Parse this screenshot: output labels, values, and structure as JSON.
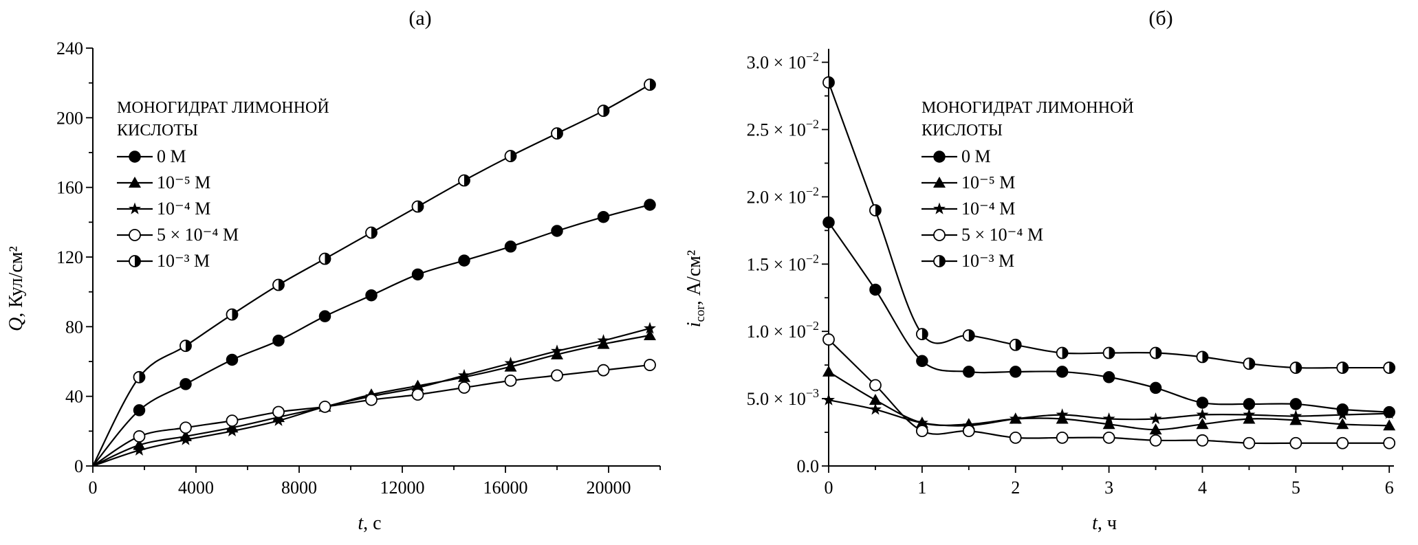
{
  "chart_data": [
    {
      "type": "line",
      "panel_label": "(a)",
      "xlabel_var": "t",
      "xlabel_rest": ", с",
      "ylabel_var": "Q",
      "ylabel_rest": ", Кул/см²",
      "xlim": [
        0,
        22000
      ],
      "ylim": [
        0,
        240
      ],
      "x_ticks": [
        0,
        4000,
        8000,
        12000,
        16000,
        20000
      ],
      "x_minor_step": 2000,
      "y_ticks": [
        {
          "value": 0,
          "label": "0"
        },
        {
          "value": 40,
          "label": "40"
        },
        {
          "value": 80,
          "label": "80"
        },
        {
          "value": 120,
          "label": "120"
        },
        {
          "value": 160,
          "label": "160"
        },
        {
          "value": 200,
          "label": "200"
        },
        {
          "value": 240,
          "label": "240"
        }
      ],
      "y_minor_step": 20,
      "line_starts_at_origin": true,
      "legend_title": [
        "МОНОГИДРАТ ЛИМОННОЙ",
        "КИСЛОТЫ"
      ],
      "legend_position": "upper-left",
      "x": [
        1800,
        3600,
        5400,
        7200,
        9000,
        10800,
        12600,
        14400,
        16200,
        18000,
        19800,
        21600
      ],
      "series": [
        {
          "name": "0 M",
          "marker": "filled-circle",
          "values": [
            32,
            47,
            61,
            72,
            86,
            98,
            110,
            118,
            126,
            135,
            143,
            150
          ]
        },
        {
          "name": "10⁻⁵ M",
          "marker": "filled-triangle",
          "values": [
            12,
            17,
            22,
            28,
            34,
            41,
            46,
            51,
            57,
            64,
            70,
            75
          ]
        },
        {
          "name": "10⁻⁴ M",
          "marker": "filled-star",
          "values": [
            9,
            15,
            20,
            26,
            34,
            40,
            45,
            52,
            59,
            66,
            72,
            79
          ]
        },
        {
          "name": "5 × 10⁻⁴ M",
          "marker": "open-circle",
          "values": [
            17,
            22,
            26,
            31,
            34,
            38,
            41,
            45,
            49,
            52,
            55,
            58
          ]
        },
        {
          "name": "10⁻³ M",
          "marker": "half-filled-circle",
          "values": [
            51,
            69,
            87,
            104,
            119,
            134,
            149,
            164,
            178,
            191,
            204,
            219
          ]
        }
      ]
    },
    {
      "type": "line",
      "panel_label": "(б)",
      "xlabel_var": "t",
      "xlabel_rest": ", ч",
      "ylabel_var": "i",
      "ylabel_sub": "cor",
      "ylabel_rest": ", А/см²",
      "xlim": [
        0,
        6.05
      ],
      "ylim": [
        0,
        0.031
      ],
      "x_ticks": [
        0,
        1,
        2,
        3,
        4,
        5,
        6
      ],
      "x_minor_step": 0.5,
      "y_ticks": [
        {
          "value": 0,
          "label": "0.0"
        },
        {
          "value": 0.005,
          "label": "5.0 × 10",
          "exp": "−3"
        },
        {
          "value": 0.01,
          "label": "1.0 × 10",
          "exp": "−2"
        },
        {
          "value": 0.015,
          "label": "1.5 × 10",
          "exp": "−2"
        },
        {
          "value": 0.02,
          "label": "2.0 × 10",
          "exp": "−2"
        },
        {
          "value": 0.025,
          "label": "2.5 × 10",
          "exp": "−2"
        },
        {
          "value": 0.03,
          "label": "3.0 × 10",
          "exp": "−2"
        }
      ],
      "y_minor_step": 0.0025,
      "line_starts_at_origin": false,
      "legend_title": [
        "МОНОГИДРАТ ЛИМОННОЙ",
        "КИСЛОТЫ"
      ],
      "legend_position": "upper-center",
      "x": [
        0,
        0.5,
        1,
        1.5,
        2,
        2.5,
        3,
        3.5,
        4,
        4.5,
        5,
        5.5,
        6
      ],
      "series": [
        {
          "name": "0 M",
          "marker": "filled-circle",
          "values": [
            0.0181,
            0.0131,
            0.0078,
            0.007,
            0.007,
            0.007,
            0.0066,
            0.0058,
            0.0047,
            0.0046,
            0.0046,
            0.0042,
            0.004
          ]
        },
        {
          "name": "10⁻⁵ M",
          "marker": "filled-triangle",
          "values": [
            0.007,
            0.0049,
            0.0032,
            0.0031,
            0.0035,
            0.0035,
            0.0031,
            0.0027,
            0.0031,
            0.0035,
            0.0034,
            0.0031,
            0.003
          ]
        },
        {
          "name": "10⁻⁴ M",
          "marker": "filled-star",
          "values": [
            0.0049,
            0.0042,
            0.0032,
            0.003,
            0.0035,
            0.0038,
            0.0035,
            0.0035,
            0.0038,
            0.0038,
            0.0037,
            0.0038,
            0.0039
          ]
        },
        {
          "name": "5 × 10⁻⁴ M",
          "marker": "open-circle",
          "values": [
            0.0094,
            0.006,
            0.0026,
            0.0026,
            0.0021,
            0.0021,
            0.0021,
            0.0019,
            0.0019,
            0.0017,
            0.0017,
            0.0017,
            0.0017
          ]
        },
        {
          "name": "10⁻³ M",
          "marker": "half-filled-circle",
          "values": [
            0.0285,
            0.019,
            0.0098,
            0.0097,
            0.009,
            0.0084,
            0.0084,
            0.0084,
            0.0081,
            0.0076,
            0.0073,
            0.0073,
            0.0073
          ]
        }
      ]
    }
  ]
}
